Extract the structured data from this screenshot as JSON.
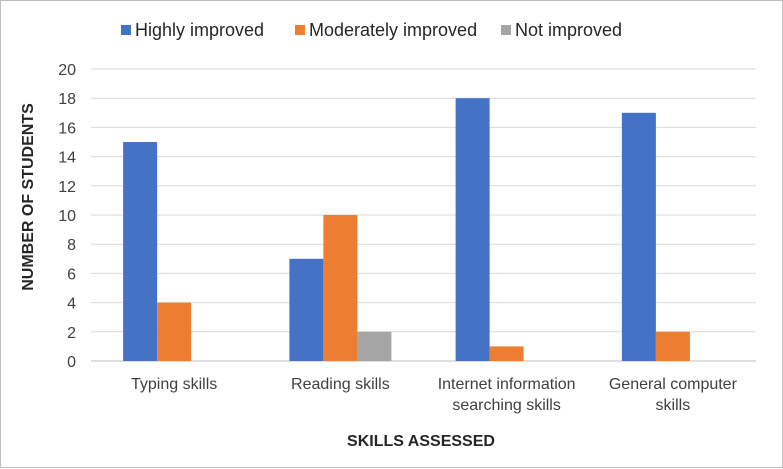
{
  "chart_data": {
    "type": "bar",
    "categories": [
      [
        "Typing skills"
      ],
      [
        "Reading skills"
      ],
      [
        "Internet information",
        "searching skills"
      ],
      [
        "General computer",
        "skills"
      ]
    ],
    "series": [
      {
        "name": "Highly improved",
        "color": "#4472C4",
        "values": [
          15,
          7,
          18,
          17
        ]
      },
      {
        "name": "Moderately improved",
        "color": "#ED7D31",
        "values": [
          4,
          10,
          1,
          2
        ]
      },
      {
        "name": "Not improved",
        "color": "#A5A5A5",
        "values": [
          0,
          2,
          0,
          0
        ]
      }
    ],
    "xlabel": "SKILLS ASSESSED",
    "ylabel": "NUMBER OF STUDENTS",
    "ylim": [
      0,
      20
    ],
    "yticks": [
      0,
      2,
      4,
      6,
      8,
      10,
      12,
      14,
      16,
      18,
      20
    ],
    "grid": true,
    "legend_position": "top"
  }
}
